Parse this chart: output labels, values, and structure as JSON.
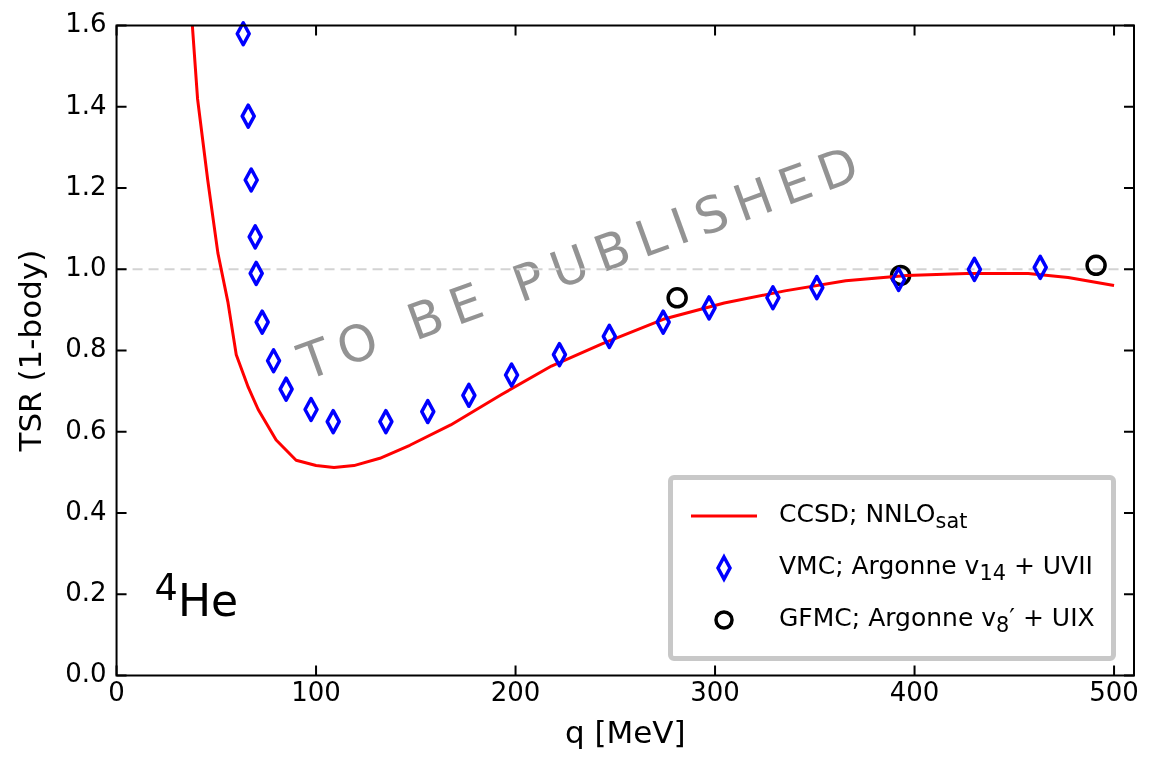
{
  "chart_data": {
    "type": "line",
    "xlabel": "q [MeV]",
    "ylabel": "TSR (1-body)",
    "xlim": [
      0,
      510
    ],
    "xticks": [
      0,
      100,
      200,
      300,
      400,
      500
    ],
    "ylim": [
      0,
      1.6
    ],
    "yticks": [
      {
        "value": 0,
        "label": "0.0"
      },
      {
        "value": 0.2,
        "label": "0.2"
      },
      {
        "value": 0.4,
        "label": "0.4"
      },
      {
        "value": 0.6,
        "label": "0.6"
      },
      {
        "value": 0.8,
        "label": "0.8"
      },
      {
        "value": 1,
        "label": "1.0"
      },
      {
        "value": 1.2,
        "label": "1.2"
      },
      {
        "value": 1.4,
        "label": "1.4"
      },
      {
        "value": 1.6,
        "label": "1.6"
      }
    ],
    "grid": false,
    "legend": "bottom right",
    "ref_lines": [
      {
        "axis": "y",
        "value": 1,
        "color": "#d3d3d3",
        "line_style": "dashed"
      }
    ],
    "annotations": [
      "$^{4}$He",
      "TO BE PUBLISHED"
    ],
    "series": [
      {
        "name": "CCSD;  NNLO$_{sat}$",
        "type": "line",
        "color": "#ff0000",
        "marker": "none",
        "x": [
          38,
          40.6,
          45.7,
          50.8,
          55.8,
          60,
          66,
          71,
          80,
          90,
          100,
          109,
          119,
          132,
          147,
          167.5,
          193,
          218,
          243.6,
          274,
          304.6,
          335,
          365.5,
          396,
          426,
          457,
          477,
          500
        ],
        "values": [
          1.6,
          1.42,
          1.22,
          1.04,
          0.92,
          0.79,
          0.71,
          0.655,
          0.58,
          0.53,
          0.517,
          0.512,
          0.517,
          0.535,
          0.567,
          0.617,
          0.692,
          0.762,
          0.817,
          0.877,
          0.917,
          0.947,
          0.972,
          0.985,
          0.99,
          0.99,
          0.98,
          0.96
        ]
      },
      {
        "name": "VMC;  Argonne v$_{14}$ + UVII",
        "type": "scatter",
        "color": "#0000ff",
        "marker": "diamond",
        "x": [
          63.5,
          66,
          67.5,
          69.5,
          70,
          73,
          78.7,
          85,
          97.5,
          108.6,
          135,
          156,
          176.6,
          198,
          222,
          247,
          274,
          297,
          329,
          351,
          392,
          430,
          463
        ],
        "values": [
          1.58,
          1.377,
          1.22,
          1.08,
          0.99,
          0.87,
          0.775,
          0.705,
          0.655,
          0.625,
          0.625,
          0.65,
          0.69,
          0.74,
          0.79,
          0.835,
          0.87,
          0.905,
          0.93,
          0.955,
          0.975,
          1.0,
          1.005
        ]
      },
      {
        "name": "GFMC;  Argonne v$_{8}$′ + UIX",
        "type": "scatter",
        "color": "#000000",
        "marker": "circle",
        "x": [
          281,
          393,
          491
        ],
        "values": [
          0.93,
          0.985,
          1.01
        ]
      }
    ]
  }
}
